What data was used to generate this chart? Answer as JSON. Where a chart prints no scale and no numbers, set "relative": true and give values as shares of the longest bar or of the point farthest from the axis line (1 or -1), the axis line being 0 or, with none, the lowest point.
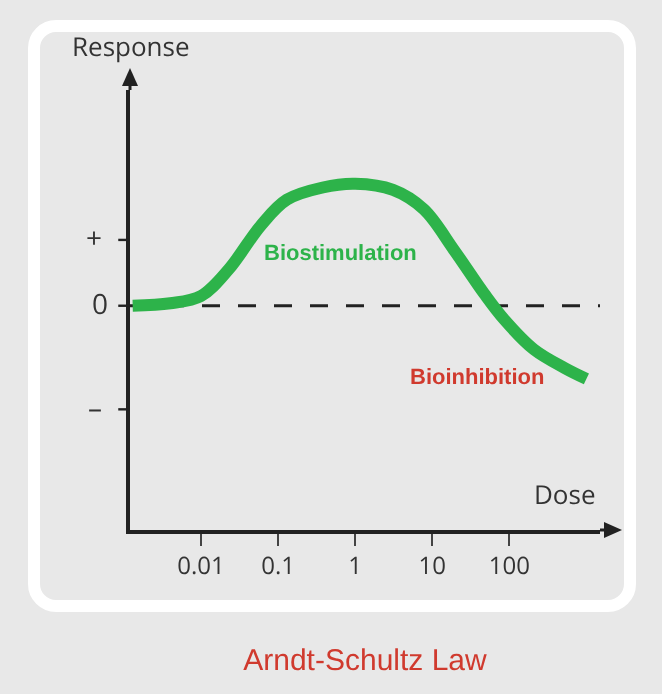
{
  "chart_data": {
    "type": "line",
    "title": "Arndt-Schultz Law",
    "xlabel": "Dose",
    "ylabel": "Response",
    "relative": true,
    "log": "x",
    "x": [
      0.0013,
      0.004,
      0.01,
      0.023,
      0.06,
      0.13,
      0.38,
      1,
      3.1,
      7.8,
      19,
      47,
      85,
      210,
      520,
      1000
    ],
    "series": [
      {
        "color": "#2db34a",
        "values": [
          0,
          0.02,
          0.08,
          0.3,
          0.66,
          0.87,
          0.97,
          1,
          0.95,
          0.79,
          0.46,
          0.1,
          -0.11,
          -0.36,
          -0.51,
          -0.6
        ]
      }
    ],
    "xlim": [
      0.0012,
      1500
    ],
    "xticks": [
      0.01,
      0.1,
      1,
      10,
      100
    ],
    "ref_lines": [
      {
        "axis": "y",
        "value": 0,
        "label": "0",
        "line_style": "dashed",
        "color": "#222222"
      }
    ],
    "annotations": [
      "+",
      "–",
      "Biostimulation",
      "Bioinhibition"
    ],
    "grid": false,
    "marker": "none",
    "line_style": "solid"
  }
}
